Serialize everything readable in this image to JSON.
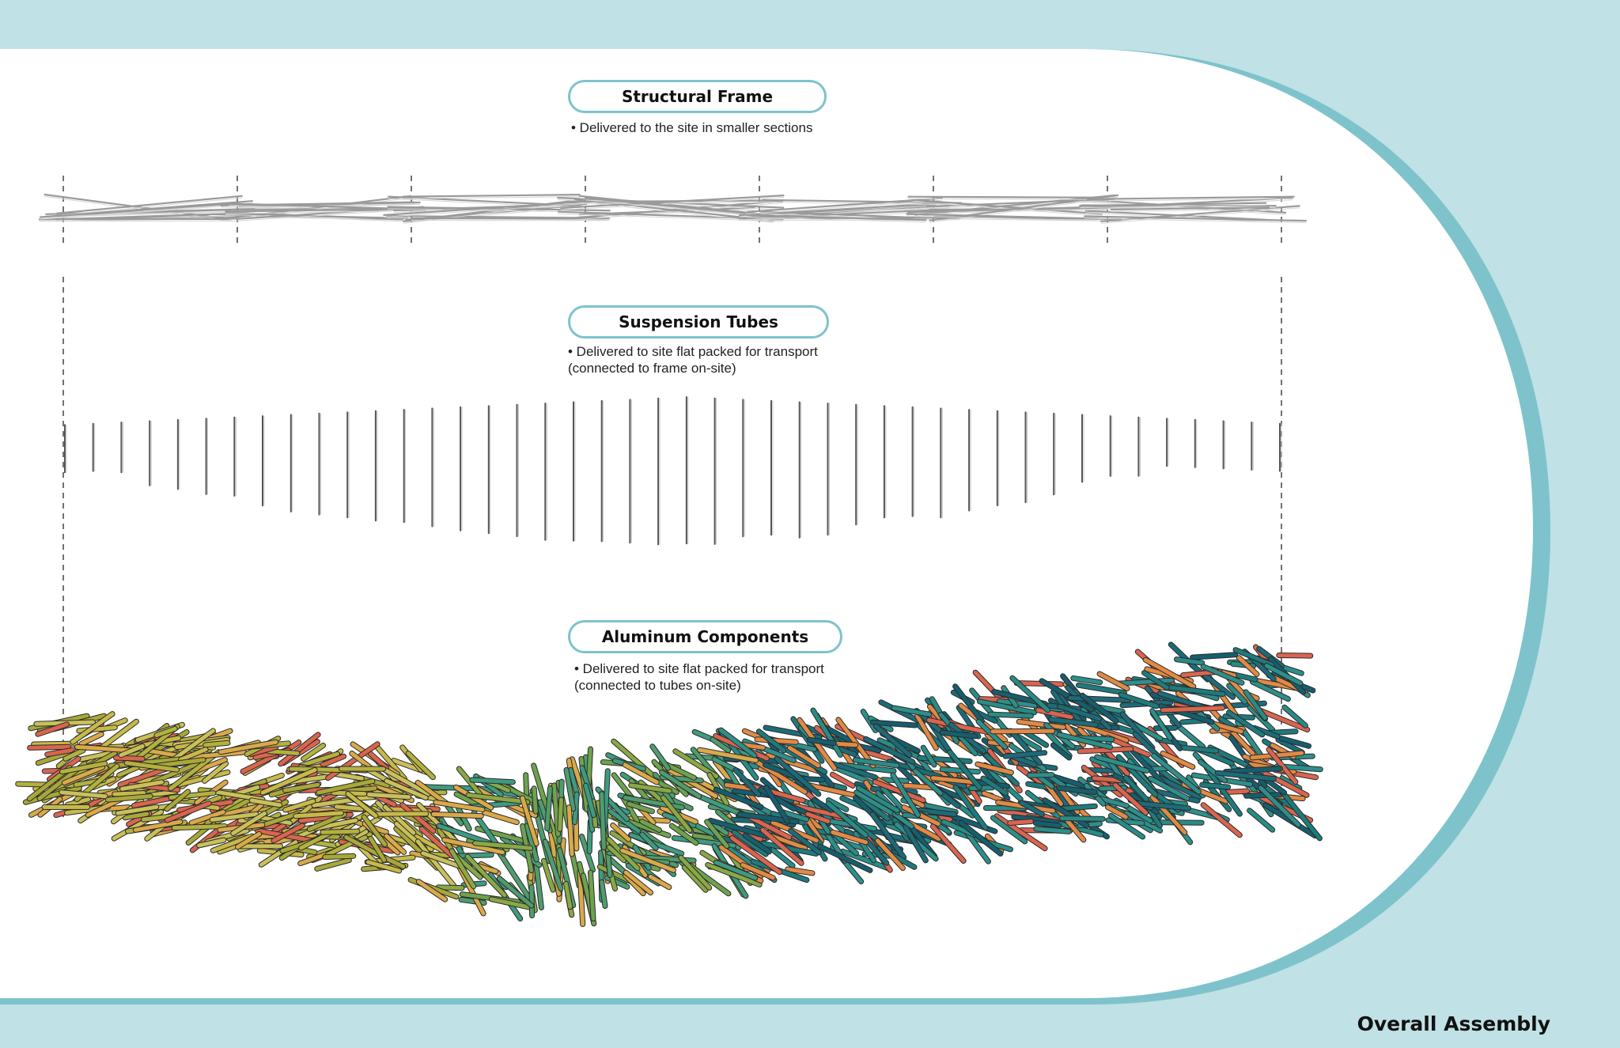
{
  "sections": [
    {
      "title": "Structural Frame",
      "notes": [
        "• Delivered to the site in smaller sections"
      ]
    },
    {
      "title": "Suspension Tubes",
      "notes": [
        "• Delivered to site flat packed for transport",
        "(connected to frame on-site)"
      ]
    },
    {
      "title": "Aluminum Components",
      "notes": [
        "• Delivered to site flat packed for transport",
        "(connected to tubes on-site)"
      ]
    }
  ],
  "footer_title": "Overall Assembly",
  "colors": {
    "background": "#c0e1e6",
    "panel": "#ffffff",
    "panel_rim": "#7ec3cc",
    "pill_border": "#7ec3cc",
    "frame_members": "#9a9a9a",
    "tubes": "#555555",
    "component_palette": [
      "#c7b94a",
      "#b3b13f",
      "#d9a94a",
      "#d9654f",
      "#8aa845",
      "#4f9c6e",
      "#2e8f8a",
      "#1f7a7c",
      "#165e6e",
      "#e08a45"
    ]
  }
}
